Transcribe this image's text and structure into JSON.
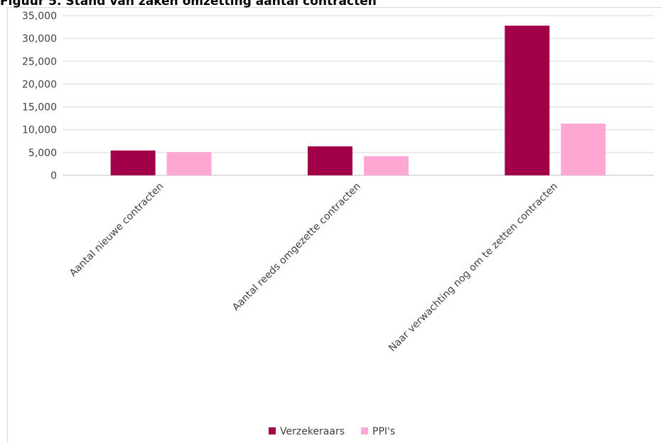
{
  "title": "Figuur 5. Stand van zaken omzetting aantal contracten",
  "chart_data": {
    "type": "bar",
    "categories": [
      "Aantal nieuwe contracten",
      "Aantal reeds omgezette contracten",
      "Naar verwachting nog om te zetten contracten"
    ],
    "series": [
      {
        "name": "Verzekeraars",
        "values": [
          5450,
          6350,
          32800
        ]
      },
      {
        "name": "PPI's",
        "values": [
          5100,
          4200,
          11350
        ]
      }
    ],
    "ylim": [
      0,
      35000
    ],
    "yticks": [
      "0",
      "5,000",
      "10,000",
      "15,000",
      "20,000",
      "25,000",
      "30,000",
      "35,000"
    ],
    "grid": true,
    "legend": "bottom",
    "colors": [
      "#a3004a",
      "#ffa8d4"
    ]
  }
}
